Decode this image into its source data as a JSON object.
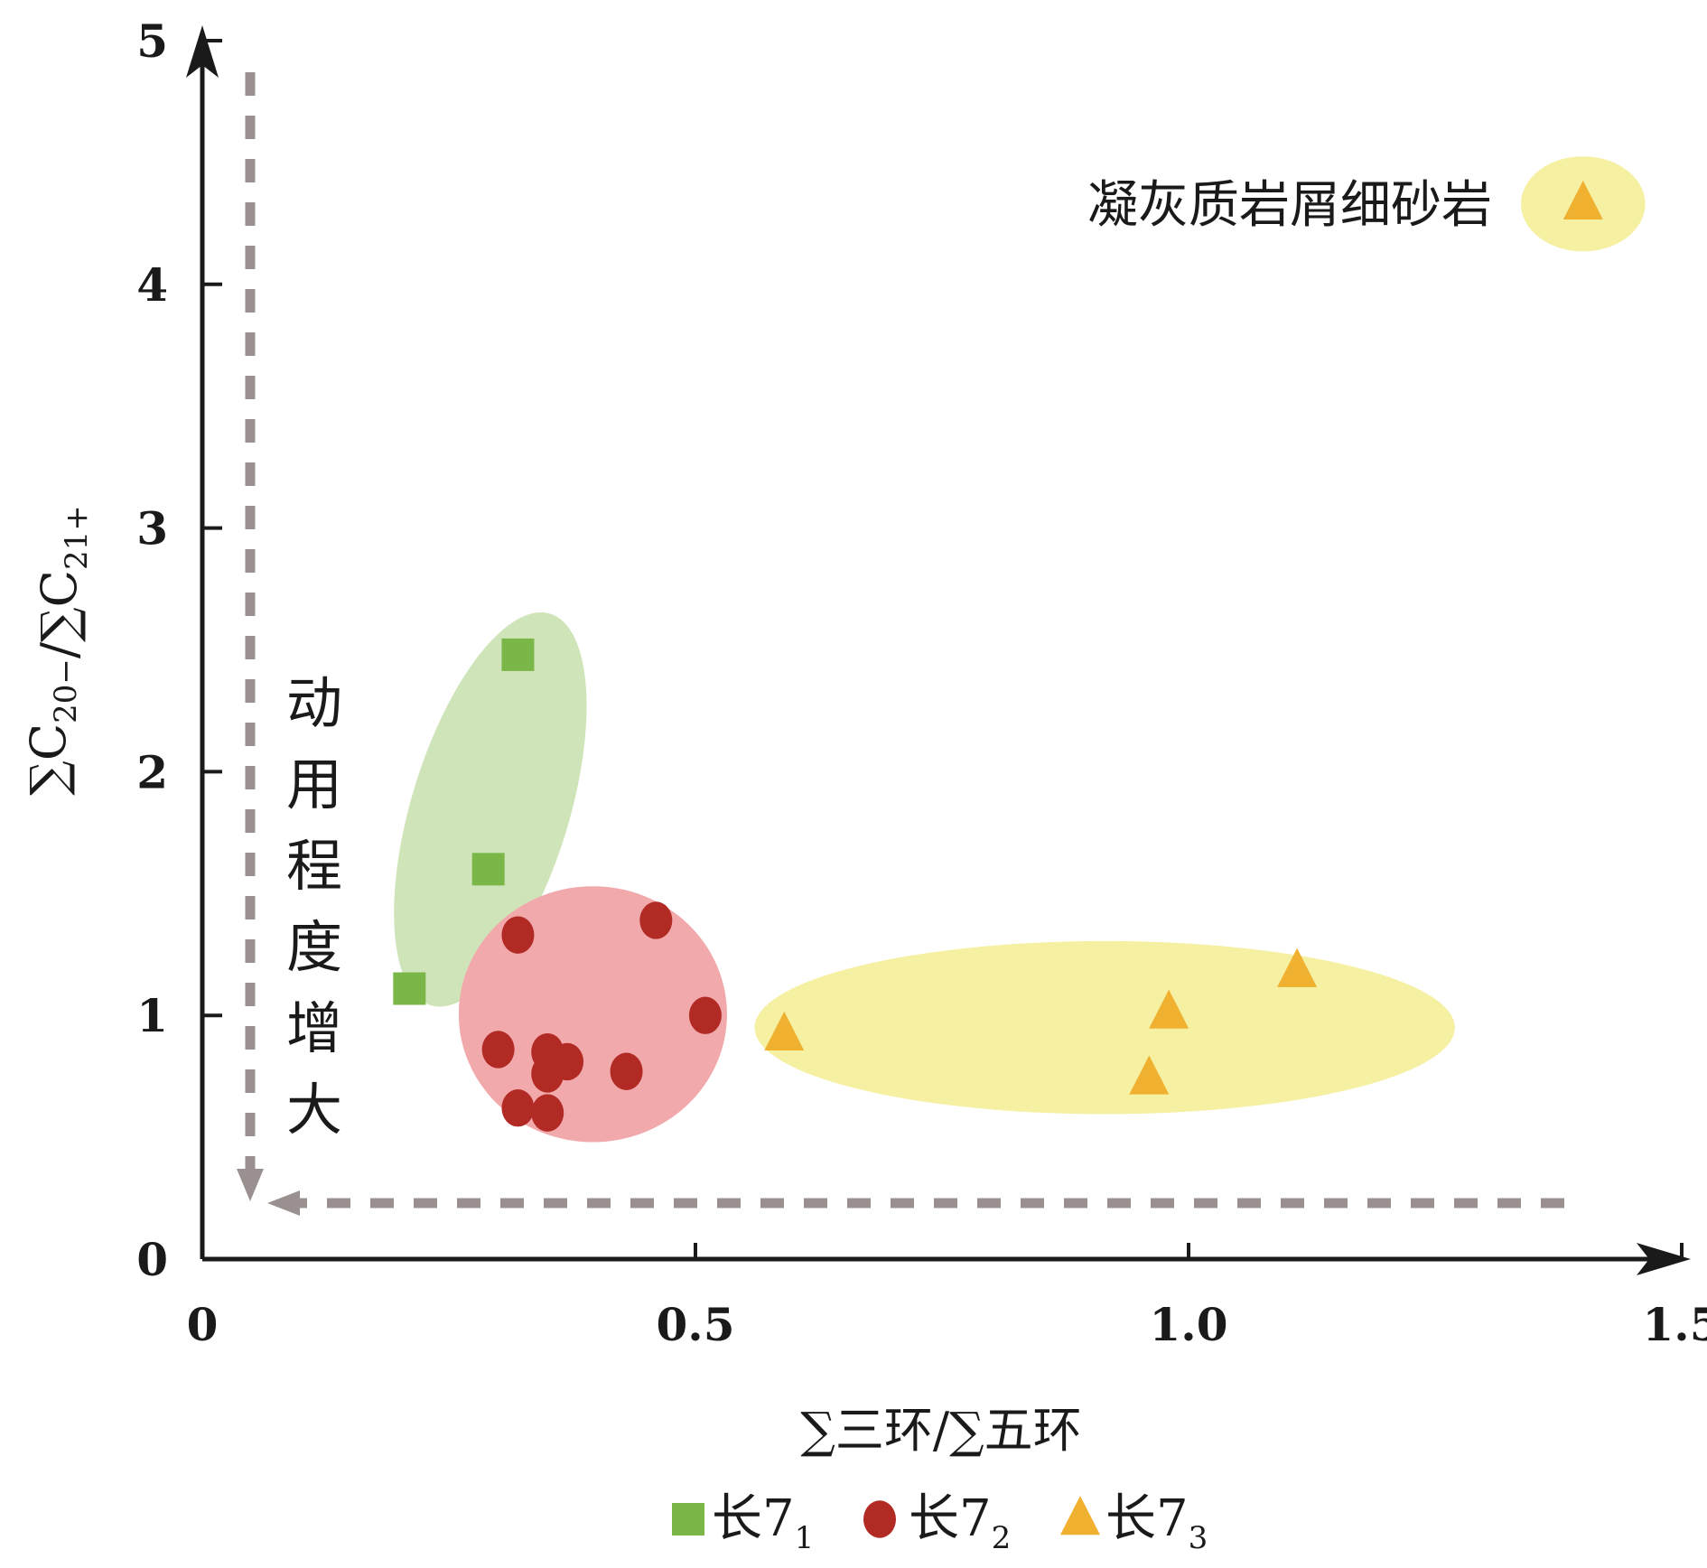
{
  "chart_data": {
    "type": "scatter",
    "xlabel": "∑三环/∑五环",
    "ylabel": {
      "main": "∑C",
      "sub1": "20−",
      "mid": "/∑C",
      "sub2": "21+"
    },
    "xlim": [
      0,
      1.5
    ],
    "ylim": [
      0,
      5
    ],
    "x_ticks": [
      {
        "value": 0,
        "label": "0"
      },
      {
        "value": 0.5,
        "label": "0.5"
      },
      {
        "value": 1.0,
        "label": "1.0"
      },
      {
        "value": 1.5,
        "label": "1.5"
      }
    ],
    "y_ticks": [
      {
        "value": 0,
        "label": "0"
      },
      {
        "value": 1,
        "label": "1"
      },
      {
        "value": 2,
        "label": "2"
      },
      {
        "value": 3,
        "label": "3"
      },
      {
        "value": 4,
        "label": "4"
      },
      {
        "value": 5,
        "label": "5"
      }
    ],
    "series": [
      {
        "name": "长7",
        "sub": "1",
        "marker": "square",
        "color": "#7ab648",
        "points": [
          [
            0.21,
            1.11
          ],
          [
            0.29,
            1.6
          ],
          [
            0.32,
            2.48
          ]
        ]
      },
      {
        "name": "长7",
        "sub": "2",
        "marker": "circle",
        "color": "#b22a24",
        "points": [
          [
            0.32,
            1.33
          ],
          [
            0.3,
            0.86
          ],
          [
            0.35,
            0.85
          ],
          [
            0.35,
            0.76
          ],
          [
            0.37,
            0.81
          ],
          [
            0.32,
            0.62
          ],
          [
            0.35,
            0.6
          ],
          [
            0.43,
            0.77
          ],
          [
            0.46,
            1.39
          ],
          [
            0.51,
            1.0
          ]
        ]
      },
      {
        "name": "长7",
        "sub": "3",
        "marker": "triangle",
        "color": "#f0b030",
        "points": [
          [
            0.59,
            0.92
          ],
          [
            0.98,
            1.01
          ],
          [
            1.11,
            1.18
          ],
          [
            0.96,
            0.74
          ],
          [
            1.4,
            4.33
          ]
        ]
      }
    ],
    "clusters": [
      {
        "series": "长7₁",
        "cx": 0.292,
        "cy": 1.845,
        "rx": 0.08,
        "ry": 0.84,
        "rotate": 17,
        "color": "#cfe4b8"
      },
      {
        "series": "长7₂",
        "cx": 0.396,
        "cy": 1.005,
        "rx": 0.136,
        "ry": 0.525,
        "rotate": 0,
        "color": "#f2a9ac"
      },
      {
        "series": "长7₃",
        "cx": 0.915,
        "cy": 0.95,
        "rx": 0.355,
        "ry": 0.355,
        "rotate": 0,
        "color": "#f6f0a2"
      },
      {
        "series": "凝灰质岩屑细砂岩",
        "cx": 1.4,
        "cy": 4.33,
        "rx": 0.063,
        "ry": 0.195,
        "rotate": 0,
        "color": "#f6f0a2"
      }
    ],
    "annotations": {
      "sample_label": "凝灰质岩屑细砂岩",
      "trend_text": [
        "动",
        "用",
        "程",
        "度",
        "增",
        "大"
      ]
    },
    "legend": {
      "placement": "bottom-center"
    },
    "grid": false
  }
}
